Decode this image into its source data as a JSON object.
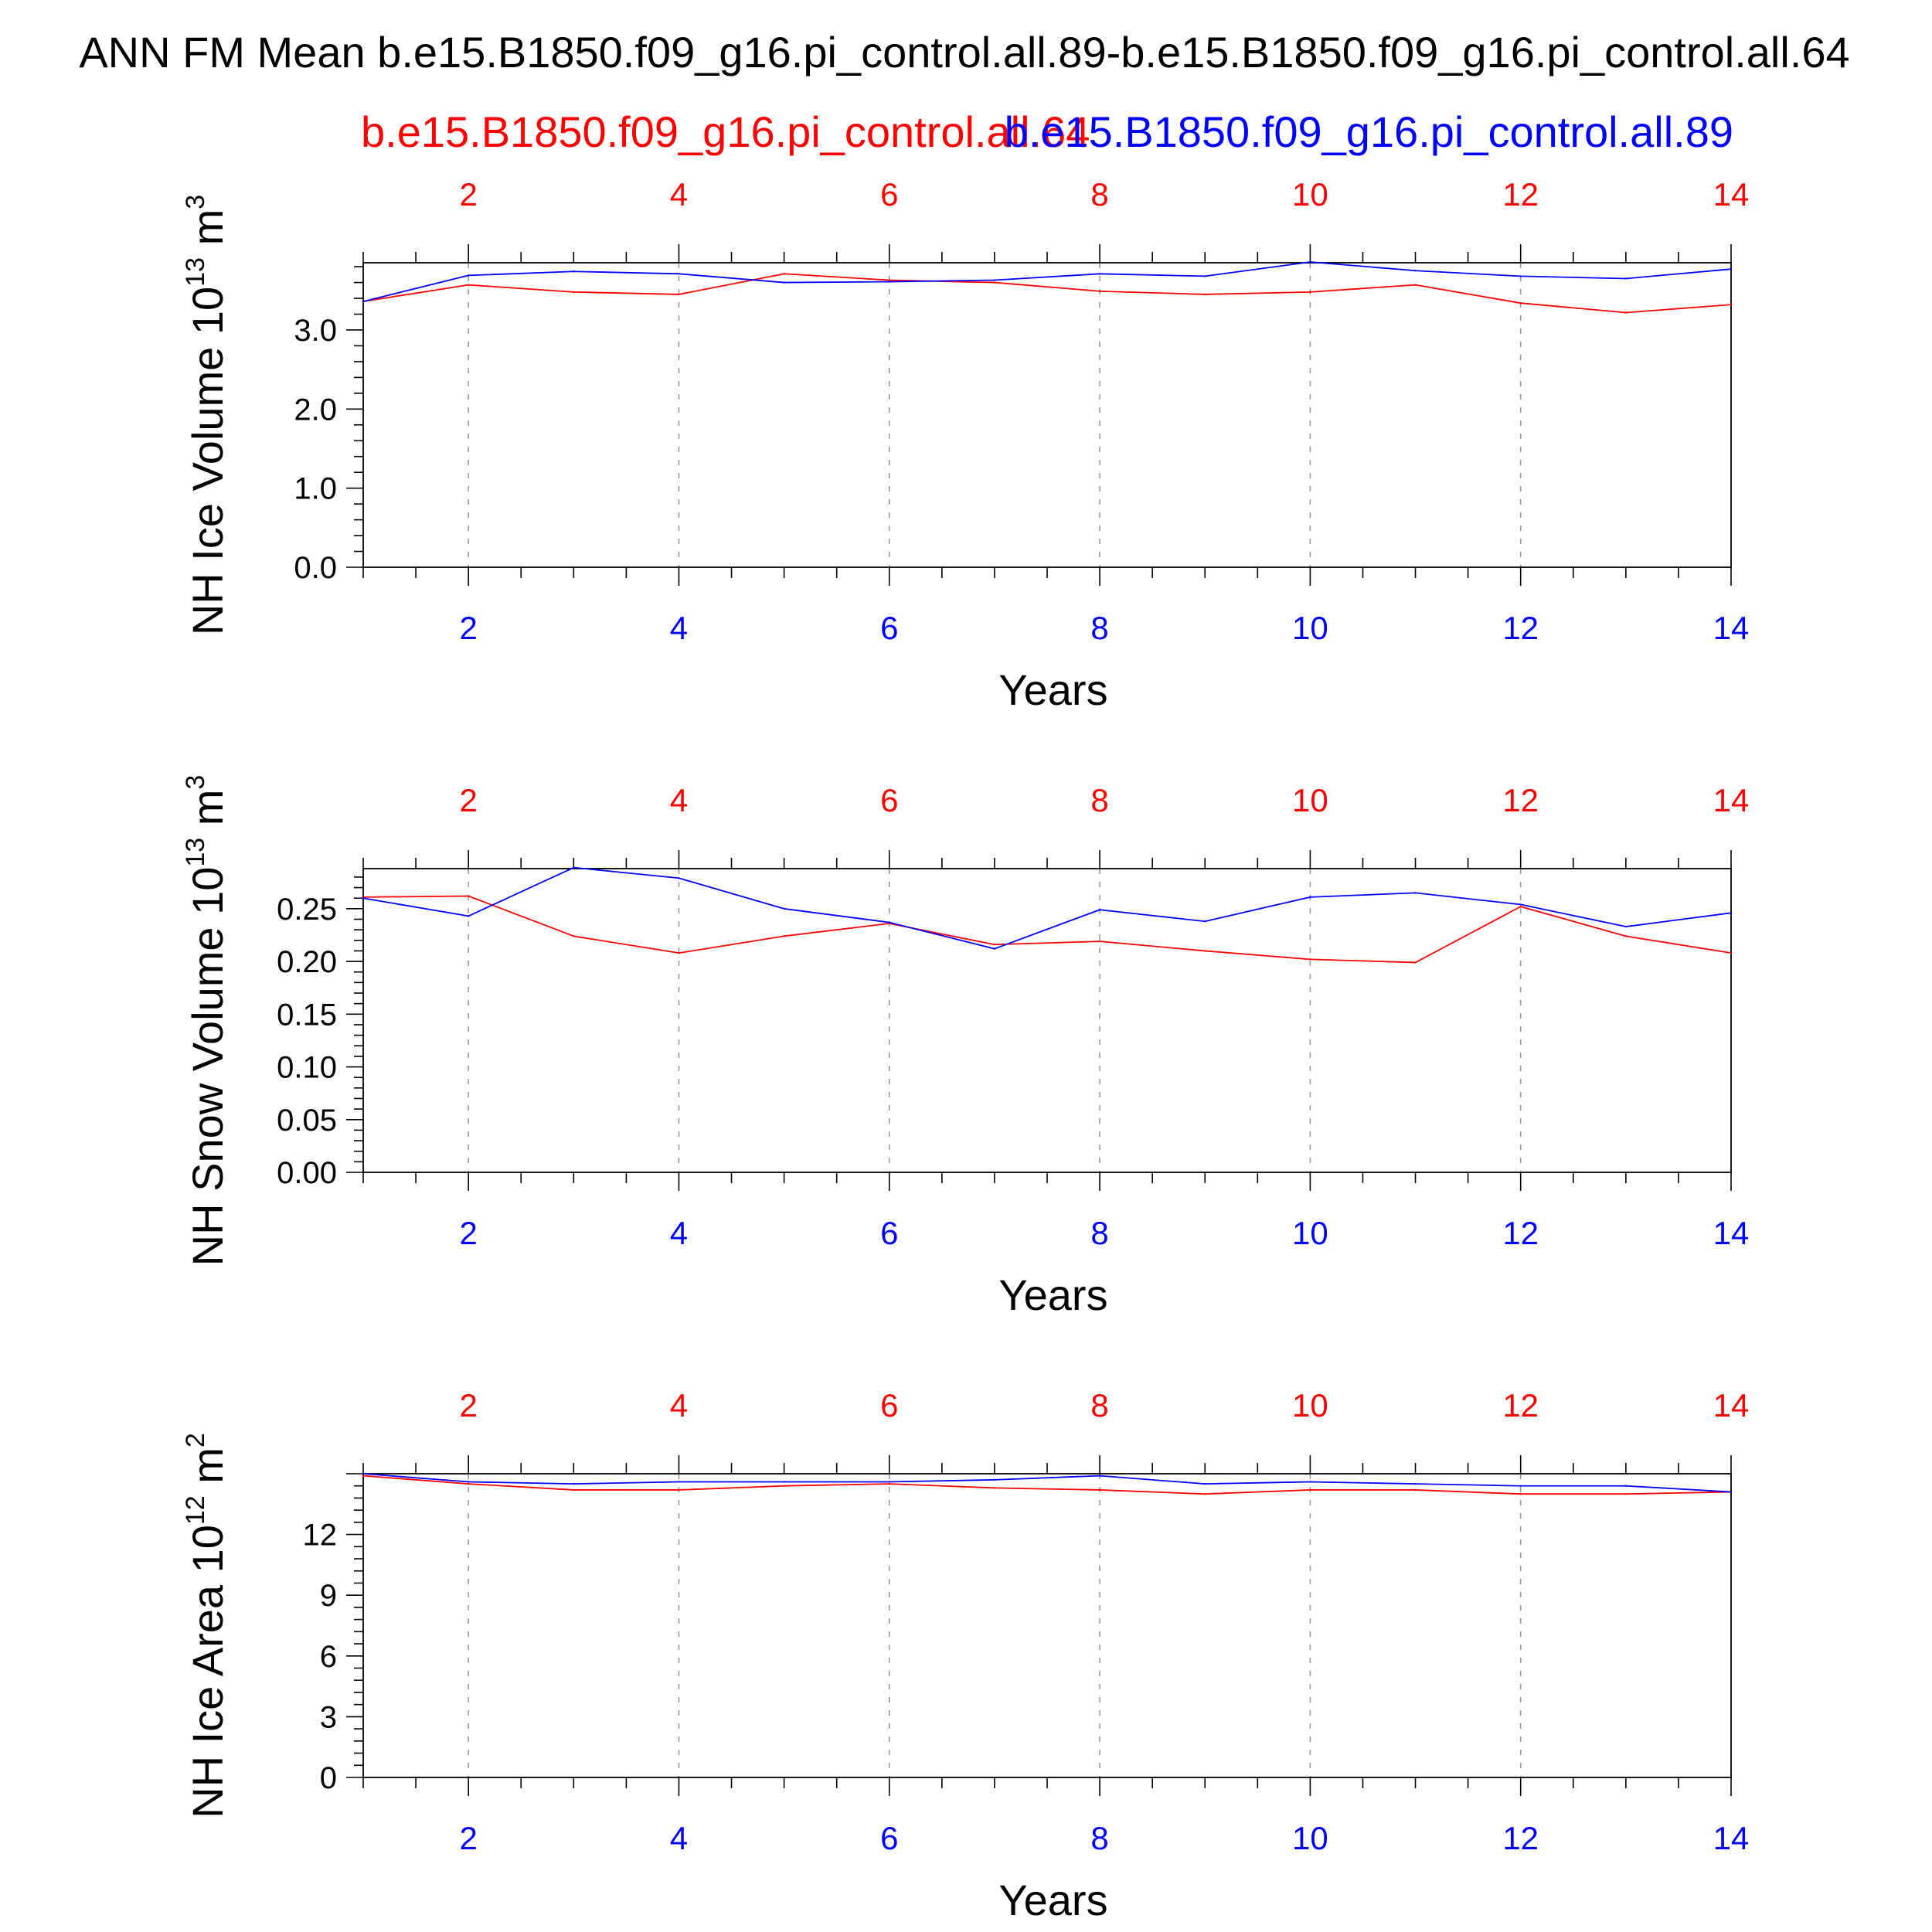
{
  "title": "ANN FM Mean b.e15.B1850.f09_g16.pi_control.all.89-b.e15.B1850.f09_g16.pi_control.all.64",
  "legend": {
    "case1": "b.e15.B1850.f09_g16.pi_control.all.64",
    "case2": "b.e15.B1850.f09_g16.pi_control.all.89"
  },
  "colors": {
    "case1": "#ff0000",
    "case2": "#0000ff",
    "axis": "#000000",
    "grid": "#9a9a9a"
  },
  "chart_data": [
    {
      "type": "line",
      "ylabel": "NH Ice Volume",
      "yunit_base": "10",
      "yunit_exp": "13",
      "yunit_tail": "m",
      "yunit_tail_exp": "3",
      "xlabel": "Years",
      "xlim": [
        1,
        14
      ],
      "ylim": [
        0,
        3.85
      ],
      "yticks": [
        0.0,
        1.0,
        2.0,
        3.0
      ],
      "ytick_labels": [
        "0.0",
        "1.0",
        "2.0",
        "3.0"
      ],
      "xticks": [
        2,
        4,
        6,
        8,
        10,
        12,
        14
      ],
      "xtick_labels": [
        "2",
        "4",
        "6",
        "8",
        "10",
        "12",
        "14"
      ],
      "x": [
        1,
        2,
        3,
        4,
        5,
        6,
        7,
        8,
        9,
        10,
        11,
        12,
        13,
        14
      ],
      "series": [
        {
          "values": [
            3.36,
            3.57,
            3.48,
            3.45,
            3.71,
            3.63,
            3.6,
            3.49,
            3.45,
            3.48,
            3.57,
            3.34,
            3.22,
            3.32
          ]
        },
        {
          "values": [
            3.36,
            3.69,
            3.74,
            3.71,
            3.6,
            3.61,
            3.63,
            3.71,
            3.68,
            3.86,
            3.75,
            3.68,
            3.65,
            3.77
          ]
        }
      ]
    },
    {
      "type": "line",
      "ylabel": "NH Snow Volume",
      "yunit_base": "10",
      "yunit_exp": "13",
      "yunit_tail": "m",
      "yunit_tail_exp": "3",
      "xlabel": "Years",
      "xlim": [
        1,
        14
      ],
      "ylim": [
        0,
        0.288
      ],
      "yticks": [
        0.0,
        0.05,
        0.1,
        0.15,
        0.2,
        0.25
      ],
      "ytick_labels": [
        "0.00",
        "0.05",
        "0.10",
        "0.15",
        "0.20",
        "0.25"
      ],
      "xticks": [
        2,
        4,
        6,
        8,
        10,
        12,
        14
      ],
      "xtick_labels": [
        "2",
        "4",
        "6",
        "8",
        "10",
        "12",
        "14"
      ],
      "x": [
        1,
        2,
        3,
        4,
        5,
        6,
        7,
        8,
        9,
        10,
        11,
        12,
        13,
        14
      ],
      "series": [
        {
          "values": [
            0.261,
            0.262,
            0.224,
            0.208,
            0.224,
            0.236,
            0.216,
            0.219,
            0.21,
            0.202,
            0.199,
            0.252,
            0.224,
            0.208
          ]
        },
        {
          "values": [
            0.26,
            0.243,
            0.289,
            0.279,
            0.25,
            0.237,
            0.212,
            0.249,
            0.238,
            0.261,
            0.265,
            0.254,
            0.233,
            0.246
          ]
        }
      ]
    },
    {
      "type": "line",
      "ylabel": "NH Ice Area",
      "yunit_base": "10",
      "yunit_exp": "12",
      "yunit_tail": "m",
      "yunit_tail_exp": "2",
      "xlabel": "Years",
      "xlim": [
        1,
        14
      ],
      "ylim": [
        0,
        15.0
      ],
      "yticks": [
        0,
        3,
        6,
        9,
        12
      ],
      "ytick_labels": [
        "0",
        "3",
        "6",
        "9",
        "12"
      ],
      "xticks": [
        2,
        4,
        6,
        8,
        10,
        12,
        14
      ],
      "xtick_labels": [
        "2",
        "4",
        "6",
        "8",
        "10",
        "12",
        "14"
      ],
      "x": [
        1,
        2,
        3,
        4,
        5,
        6,
        7,
        8,
        9,
        10,
        11,
        12,
        13,
        14
      ],
      "series": [
        {
          "values": [
            14.9,
            14.5,
            14.2,
            14.2,
            14.4,
            14.5,
            14.3,
            14.2,
            14.0,
            14.2,
            14.2,
            14.0,
            14.0,
            14.1
          ]
        },
        {
          "values": [
            15.0,
            14.6,
            14.5,
            14.6,
            14.6,
            14.6,
            14.7,
            14.9,
            14.5,
            14.6,
            14.5,
            14.4,
            14.4,
            14.1
          ]
        }
      ]
    }
  ]
}
